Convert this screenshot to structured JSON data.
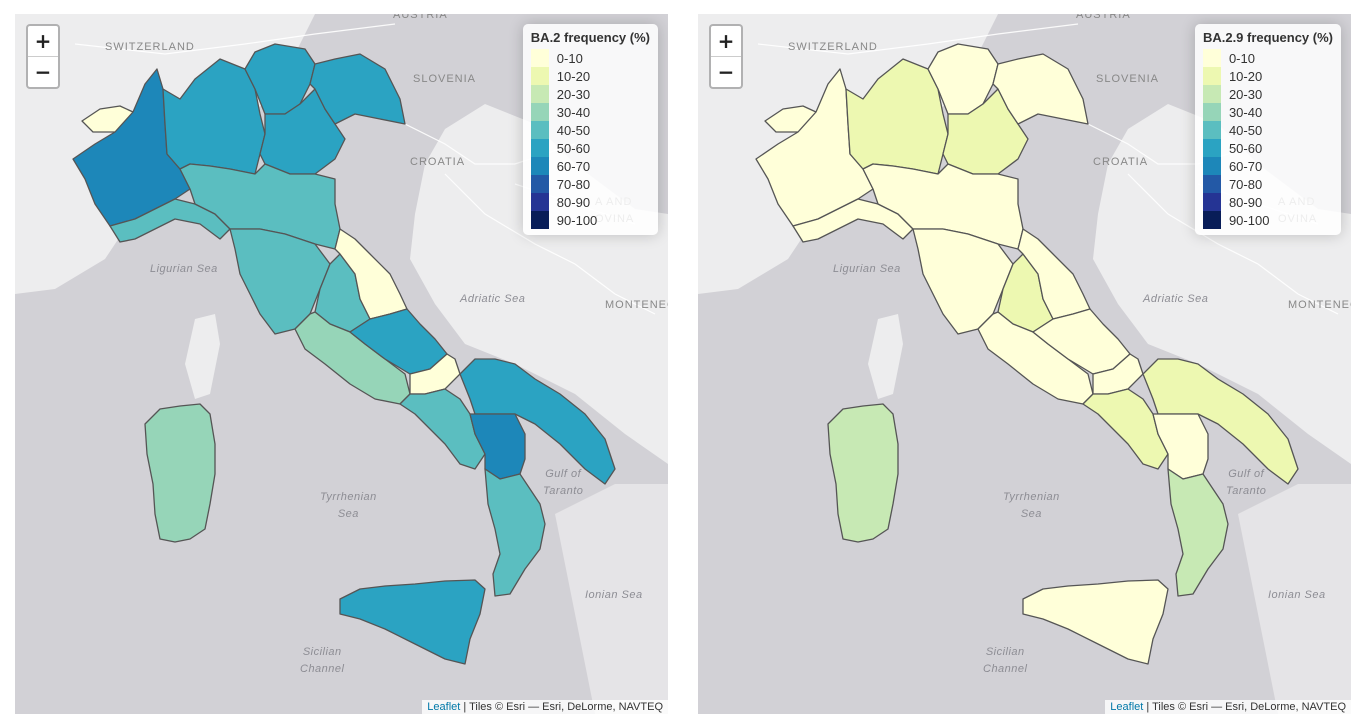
{
  "legend": {
    "classes": [
      {
        "label": "0-10",
        "color": "#ffffd9"
      },
      {
        "label": "10-20",
        "color": "#edf8b1"
      },
      {
        "label": "20-30",
        "color": "#c7e9b4"
      },
      {
        "label": "30-40",
        "color": "#96d5b8"
      },
      {
        "label": "40-50",
        "color": "#5bbec0"
      },
      {
        "label": "50-60",
        "color": "#2ba3c2"
      },
      {
        "label": "60-70",
        "color": "#1d87b9"
      },
      {
        "label": "70-80",
        "color": "#2359a6"
      },
      {
        "label": "80-90",
        "color": "#253494"
      },
      {
        "label": "90-100",
        "color": "#081d58"
      }
    ]
  },
  "maps": [
    {
      "legend_title": "BA.2 frequency (%)",
      "zoom_in": "+",
      "zoom_out": "−",
      "attribution_link": "Leaflet",
      "attribution_text": " | Tiles © Esri — Esri, DeLorme, NAVTEQ",
      "places": {
        "austria": "AUSTRIA",
        "switzerland": "SWITZERLAND",
        "slovenia": "SLOVENIA",
        "croatia": "CROATIA",
        "bosnia": "A AND\nOVINA",
        "montenegro": "MONTENEG"
      },
      "seas": {
        "ligurian": "Ligurian Sea",
        "adriatic": "Adriatic Sea",
        "tyrrhenian": "Tyrrhenian\nSea",
        "taranto": "Gulf of\nTaranto",
        "ionian": "Ionian Sea",
        "sicilian": "Sicilian\nChannel"
      },
      "regions": {
        "valle_daosta": "0-10",
        "piemonte": "60-70",
        "lombardia": "50-60",
        "trentino": "50-60",
        "veneto": "50-60",
        "friuli": "50-60",
        "liguria": "40-50",
        "emilia_romagna": "40-50",
        "toscana": "40-50",
        "umbria": "40-50",
        "marche": "0-10",
        "lazio": "30-40",
        "abruzzo": "50-60",
        "molise": "0-10",
        "campania": "40-50",
        "puglia": "50-60",
        "basilicata": "60-70",
        "calabria": "40-50",
        "sicilia": "50-60",
        "sardegna": "30-40"
      }
    },
    {
      "legend_title": "BA.2.9 frequency (%)",
      "zoom_in": "+",
      "zoom_out": "−",
      "attribution_link": "Leaflet",
      "attribution_text": " | Tiles © Esri — Esri, DeLorme, NAVTEQ",
      "places": {
        "austria": "AUSTRIA",
        "switzerland": "SWITZERLAND",
        "slovenia": "SLOVENIA",
        "croatia": "CROATIA",
        "bosnia": "A AND\nOVINA",
        "montenegro": "MONTENEG"
      },
      "seas": {
        "ligurian": "Ligurian Sea",
        "adriatic": "Adriatic Sea",
        "tyrrhenian": "Tyrrhenian\nSea",
        "taranto": "Gulf of\nTaranto",
        "ionian": "Ionian Sea",
        "sicilian": "Sicilian\nChannel"
      },
      "regions": {
        "valle_daosta": "0-10",
        "piemonte": "0-10",
        "lombardia": "10-20",
        "trentino": "0-10",
        "veneto": "10-20",
        "friuli": "0-10",
        "liguria": "0-10",
        "emilia_romagna": "0-10",
        "toscana": "0-10",
        "umbria": "10-20",
        "marche": "0-10",
        "lazio": "0-10",
        "abruzzo": "0-10",
        "molise": "0-10",
        "campania": "10-20",
        "puglia": "10-20",
        "basilicata": "0-10",
        "calabria": "20-30",
        "sicilia": "0-10",
        "sardegna": "20-30"
      }
    }
  ]
}
